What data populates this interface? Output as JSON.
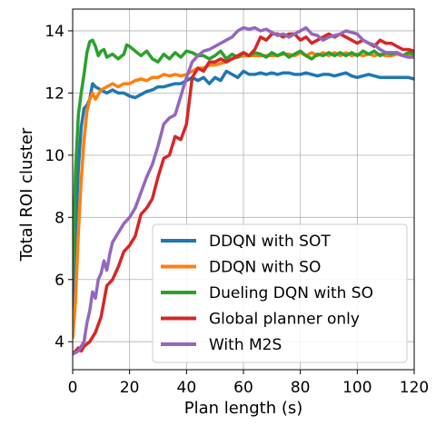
{
  "chart_data": {
    "type": "line",
    "title": "",
    "xlabel": "Plan length (s)",
    "ylabel": "Total ROI cluster",
    "xlim": [
      0,
      120
    ],
    "ylim": [
      3.1,
      14.7
    ],
    "xticks": [
      0,
      20,
      40,
      60,
      80,
      100,
      120
    ],
    "yticks": [
      4,
      6,
      8,
      10,
      12,
      14
    ],
    "grid": true,
    "legend_position": "lower-right",
    "series": [
      {
        "name": "DDQN with SOT",
        "color": "#1f77b4",
        "points": [
          [
            0,
            5.0
          ],
          [
            1,
            7.5
          ],
          [
            2,
            9.6
          ],
          [
            3,
            10.9
          ],
          [
            4,
            11.5
          ],
          [
            5,
            11.6
          ],
          [
            6,
            11.8
          ],
          [
            7,
            12.3
          ],
          [
            8,
            12.2
          ],
          [
            10,
            12.1
          ],
          [
            12,
            12.0
          ],
          [
            14,
            12.1
          ],
          [
            16,
            12.0
          ],
          [
            18,
            12.0
          ],
          [
            20,
            11.9
          ],
          [
            22,
            11.85
          ],
          [
            24,
            11.95
          ],
          [
            26,
            12.05
          ],
          [
            28,
            12.1
          ],
          [
            30,
            12.2
          ],
          [
            32,
            12.2
          ],
          [
            34,
            12.25
          ],
          [
            36,
            12.3
          ],
          [
            38,
            12.3
          ],
          [
            40,
            12.4
          ],
          [
            42,
            12.5
          ],
          [
            44,
            12.4
          ],
          [
            46,
            12.5
          ],
          [
            48,
            12.3
          ],
          [
            50,
            12.5
          ],
          [
            52,
            12.4
          ],
          [
            54,
            12.7
          ],
          [
            56,
            12.6
          ],
          [
            58,
            12.5
          ],
          [
            60,
            12.7
          ],
          [
            62,
            12.6
          ],
          [
            64,
            12.6
          ],
          [
            66,
            12.65
          ],
          [
            68,
            12.6
          ],
          [
            70,
            12.65
          ],
          [
            72,
            12.6
          ],
          [
            74,
            12.65
          ],
          [
            76,
            12.65
          ],
          [
            78,
            12.6
          ],
          [
            80,
            12.6
          ],
          [
            82,
            12.65
          ],
          [
            84,
            12.6
          ],
          [
            86,
            12.55
          ],
          [
            88,
            12.6
          ],
          [
            90,
            12.6
          ],
          [
            92,
            12.55
          ],
          [
            94,
            12.6
          ],
          [
            96,
            12.65
          ],
          [
            98,
            12.55
          ],
          [
            100,
            12.5
          ],
          [
            102,
            12.55
          ],
          [
            104,
            12.6
          ],
          [
            106,
            12.55
          ],
          [
            108,
            12.5
          ],
          [
            110,
            12.5
          ],
          [
            112,
            12.5
          ],
          [
            114,
            12.5
          ],
          [
            116,
            12.5
          ],
          [
            118,
            12.5
          ],
          [
            120,
            12.45
          ]
        ]
      },
      {
        "name": "DDQN with SO",
        "color": "#ff7f0e",
        "points": [
          [
            0,
            4.1
          ],
          [
            1,
            5.3
          ],
          [
            2,
            7.5
          ],
          [
            3,
            9.2
          ],
          [
            4,
            10.5
          ],
          [
            5,
            11.4
          ],
          [
            6,
            11.8
          ],
          [
            7,
            12.0
          ],
          [
            8,
            11.8
          ],
          [
            10,
            12.1
          ],
          [
            12,
            12.2
          ],
          [
            14,
            12.3
          ],
          [
            16,
            12.2
          ],
          [
            18,
            12.3
          ],
          [
            20,
            12.3
          ],
          [
            22,
            12.4
          ],
          [
            24,
            12.45
          ],
          [
            26,
            12.4
          ],
          [
            28,
            12.5
          ],
          [
            30,
            12.5
          ],
          [
            32,
            12.6
          ],
          [
            34,
            12.55
          ],
          [
            36,
            12.6
          ],
          [
            38,
            12.55
          ],
          [
            40,
            12.6
          ],
          [
            42,
            12.7
          ],
          [
            44,
            12.8
          ],
          [
            46,
            12.8
          ],
          [
            48,
            12.9
          ],
          [
            50,
            12.9
          ],
          [
            52,
            12.95
          ],
          [
            54,
            13.0
          ],
          [
            56,
            13.1
          ],
          [
            58,
            13.15
          ],
          [
            60,
            13.2
          ],
          [
            62,
            13.2
          ],
          [
            64,
            13.2
          ],
          [
            66,
            13.2
          ],
          [
            68,
            13.2
          ],
          [
            70,
            13.2
          ],
          [
            72,
            13.2
          ],
          [
            74,
            13.25
          ],
          [
            76,
            13.25
          ],
          [
            78,
            13.2
          ],
          [
            80,
            13.3
          ],
          [
            82,
            13.2
          ],
          [
            84,
            13.3
          ],
          [
            86,
            13.2
          ],
          [
            88,
            13.3
          ],
          [
            90,
            13.2
          ],
          [
            92,
            13.3
          ],
          [
            94,
            13.2
          ],
          [
            96,
            13.3
          ],
          [
            98,
            13.2
          ],
          [
            100,
            13.25
          ],
          [
            102,
            13.2
          ],
          [
            104,
            13.25
          ],
          [
            106,
            13.2
          ],
          [
            108,
            13.25
          ],
          [
            110,
            13.2
          ],
          [
            112,
            13.2
          ],
          [
            114,
            13.25
          ],
          [
            116,
            13.2
          ],
          [
            118,
            13.2
          ],
          [
            120,
            13.2
          ]
        ]
      },
      {
        "name": "Dueling DQN with SO",
        "color": "#2ca02c",
        "points": [
          [
            0,
            6.0
          ],
          [
            1,
            9.5
          ],
          [
            2,
            11.3
          ],
          [
            3,
            12.0
          ],
          [
            4,
            12.6
          ],
          [
            5,
            13.3
          ],
          [
            6,
            13.65
          ],
          [
            7,
            13.7
          ],
          [
            8,
            13.5
          ],
          [
            9,
            13.2
          ],
          [
            10,
            13.35
          ],
          [
            11,
            13.4
          ],
          [
            12,
            13.15
          ],
          [
            14,
            13.25
          ],
          [
            16,
            13.1
          ],
          [
            18,
            13.25
          ],
          [
            19,
            13.55
          ],
          [
            20,
            13.5
          ],
          [
            22,
            13.35
          ],
          [
            24,
            13.2
          ],
          [
            26,
            13.35
          ],
          [
            28,
            13.1
          ],
          [
            30,
            13.0
          ],
          [
            32,
            13.25
          ],
          [
            34,
            13.1
          ],
          [
            36,
            13.3
          ],
          [
            38,
            13.15
          ],
          [
            40,
            13.35
          ],
          [
            42,
            13.3
          ],
          [
            44,
            13.2
          ],
          [
            46,
            13.2
          ],
          [
            48,
            13.1
          ],
          [
            50,
            13.2
          ],
          [
            52,
            13.35
          ],
          [
            54,
            13.1
          ],
          [
            56,
            13.25
          ],
          [
            58,
            13.15
          ],
          [
            60,
            13.3
          ],
          [
            62,
            13.2
          ],
          [
            64,
            13.3
          ],
          [
            66,
            13.25
          ],
          [
            68,
            13.15
          ],
          [
            70,
            13.3
          ],
          [
            72,
            13.2
          ],
          [
            74,
            13.3
          ],
          [
            76,
            13.15
          ],
          [
            78,
            13.25
          ],
          [
            80,
            13.35
          ],
          [
            82,
            13.2
          ],
          [
            84,
            13.1
          ],
          [
            86,
            13.25
          ],
          [
            88,
            13.2
          ],
          [
            90,
            13.3
          ],
          [
            92,
            13.2
          ],
          [
            94,
            13.3
          ],
          [
            96,
            13.2
          ],
          [
            98,
            13.3
          ],
          [
            100,
            13.2
          ],
          [
            102,
            13.35
          ],
          [
            104,
            13.25
          ],
          [
            106,
            13.35
          ],
          [
            108,
            13.2
          ],
          [
            110,
            13.3
          ],
          [
            112,
            13.25
          ],
          [
            114,
            13.3
          ],
          [
            116,
            13.2
          ],
          [
            118,
            13.3
          ],
          [
            120,
            13.25
          ]
        ]
      },
      {
        "name": "Global planner only",
        "color": "#d62728",
        "points": [
          [
            0,
            3.6
          ],
          [
            2,
            3.8
          ],
          [
            3,
            3.7
          ],
          [
            4,
            3.85
          ],
          [
            6,
            4.0
          ],
          [
            8,
            4.3
          ],
          [
            10,
            4.8
          ],
          [
            12,
            5.8
          ],
          [
            14,
            6.0
          ],
          [
            16,
            6.4
          ],
          [
            18,
            6.9
          ],
          [
            20,
            7.1
          ],
          [
            22,
            7.4
          ],
          [
            24,
            8.1
          ],
          [
            26,
            8.3
          ],
          [
            28,
            8.6
          ],
          [
            30,
            9.3
          ],
          [
            32,
            9.9
          ],
          [
            34,
            10.0
          ],
          [
            36,
            10.6
          ],
          [
            38,
            10.5
          ],
          [
            40,
            11.0
          ],
          [
            42,
            12.5
          ],
          [
            44,
            12.8
          ],
          [
            46,
            12.7
          ],
          [
            48,
            13.0
          ],
          [
            50,
            13.0
          ],
          [
            52,
            13.1
          ],
          [
            54,
            13.0
          ],
          [
            56,
            13.1
          ],
          [
            58,
            13.2
          ],
          [
            60,
            13.3
          ],
          [
            62,
            13.2
          ],
          [
            64,
            13.4
          ],
          [
            66,
            13.8
          ],
          [
            68,
            13.7
          ],
          [
            70,
            13.9
          ],
          [
            72,
            13.9
          ],
          [
            74,
            13.8
          ],
          [
            76,
            13.9
          ],
          [
            78,
            13.9
          ],
          [
            80,
            13.7
          ],
          [
            82,
            13.8
          ],
          [
            84,
            13.6
          ],
          [
            86,
            13.7
          ],
          [
            88,
            13.8
          ],
          [
            90,
            13.9
          ],
          [
            92,
            13.8
          ],
          [
            94,
            13.9
          ],
          [
            96,
            13.8
          ],
          [
            98,
            13.7
          ],
          [
            100,
            13.6
          ],
          [
            102,
            13.7
          ],
          [
            104,
            13.6
          ],
          [
            106,
            13.5
          ],
          [
            108,
            13.7
          ],
          [
            110,
            13.6
          ],
          [
            112,
            13.6
          ],
          [
            114,
            13.5
          ],
          [
            116,
            13.4
          ],
          [
            118,
            13.4
          ],
          [
            120,
            13.35
          ]
        ]
      },
      {
        "name": "With M2S",
        "color": "#9467bd",
        "points": [
          [
            0,
            3.6
          ],
          [
            2,
            3.7
          ],
          [
            4,
            4.0
          ],
          [
            5,
            4.6
          ],
          [
            6,
            5.0
          ],
          [
            7,
            5.6
          ],
          [
            8,
            5.4
          ],
          [
            9,
            6.0
          ],
          [
            10,
            6.2
          ],
          [
            11,
            6.6
          ],
          [
            12,
            6.3
          ],
          [
            13,
            6.8
          ],
          [
            14,
            7.2
          ],
          [
            16,
            7.5
          ],
          [
            18,
            7.8
          ],
          [
            20,
            8.0
          ],
          [
            22,
            8.3
          ],
          [
            24,
            8.8
          ],
          [
            26,
            9.3
          ],
          [
            28,
            9.7
          ],
          [
            30,
            10.3
          ],
          [
            32,
            11.0
          ],
          [
            34,
            11.2
          ],
          [
            36,
            11.3
          ],
          [
            38,
            11.9
          ],
          [
            40,
            12.5
          ],
          [
            42,
            13.0
          ],
          [
            44,
            13.2
          ],
          [
            46,
            13.35
          ],
          [
            48,
            13.4
          ],
          [
            50,
            13.5
          ],
          [
            52,
            13.6
          ],
          [
            54,
            13.7
          ],
          [
            56,
            13.8
          ],
          [
            58,
            14.0
          ],
          [
            60,
            14.1
          ],
          [
            62,
            14.05
          ],
          [
            64,
            14.1
          ],
          [
            66,
            14.0
          ],
          [
            68,
            14.05
          ],
          [
            70,
            13.95
          ],
          [
            72,
            13.85
          ],
          [
            74,
            13.9
          ],
          [
            76,
            13.8
          ],
          [
            78,
            13.9
          ],
          [
            80,
            14.0
          ],
          [
            82,
            14.1
          ],
          [
            84,
            13.9
          ],
          [
            86,
            13.85
          ],
          [
            88,
            13.7
          ],
          [
            90,
            13.8
          ],
          [
            92,
            13.85
          ],
          [
            94,
            13.9
          ],
          [
            96,
            14.0
          ],
          [
            98,
            13.95
          ],
          [
            100,
            13.9
          ],
          [
            102,
            13.7
          ],
          [
            104,
            13.6
          ],
          [
            106,
            13.55
          ],
          [
            108,
            13.4
          ],
          [
            110,
            13.3
          ],
          [
            112,
            13.3
          ],
          [
            114,
            13.3
          ],
          [
            116,
            13.2
          ],
          [
            118,
            13.15
          ],
          [
            120,
            13.15
          ]
        ]
      }
    ]
  }
}
